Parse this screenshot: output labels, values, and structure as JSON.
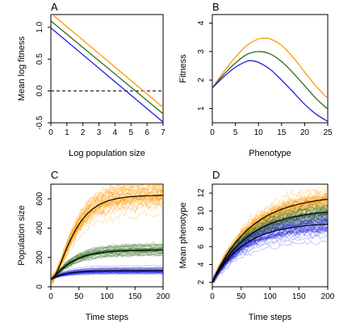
{
  "chart_data": [
    {
      "panel": "A",
      "type": "line",
      "xlabel": "Log population size",
      "ylabel": "Mean log fitness",
      "xlim": [
        0,
        7
      ],
      "ylim": [
        -0.5,
        1.2
      ],
      "xticks": [
        0,
        1,
        2,
        3,
        4,
        5,
        6,
        7
      ],
      "yticks": [
        -0.5,
        0.0,
        0.5,
        1.0
      ],
      "ytick_labels": [
        "-0.5",
        "0.0",
        "0.5",
        "1.0"
      ],
      "reference_line": {
        "y": 0,
        "style": "dashed",
        "color": "#000000"
      },
      "series": [
        {
          "color": "#FF9900",
          "x": [
            0,
            7.1
          ],
          "y": [
            1.22,
            -0.28
          ]
        },
        {
          "color": "#2E6B1F",
          "x": [
            0,
            7.1
          ],
          "y": [
            1.1,
            -0.38
          ]
        },
        {
          "color": "#1F1FE0",
          "x": [
            0,
            7.1
          ],
          "y": [
            0.99,
            -0.51
          ]
        }
      ]
    },
    {
      "panel": "B",
      "type": "line",
      "xlabel": "Phenotype",
      "ylabel": "Fitness",
      "xlim": [
        0,
        25
      ],
      "ylim": [
        0.5,
        4.3
      ],
      "xticks": [
        0,
        5,
        10,
        15,
        20,
        25
      ],
      "yticks": [
        1,
        2,
        3,
        4
      ],
      "series": [
        {
          "color": "#FF9900",
          "peak_x": 11.5,
          "peak_y": 3.47,
          "x": [
            0,
            2.5,
            5,
            7.5,
            10,
            11.5,
            12.5,
            15,
            17.5,
            20,
            22.5,
            25
          ],
          "y": [
            1.72,
            2.3,
            2.8,
            3.22,
            3.44,
            3.47,
            3.45,
            3.22,
            2.8,
            2.28,
            1.78,
            1.35
          ]
        },
        {
          "color": "#2E6B1F",
          "peak_x": 10,
          "peak_y": 3.0,
          "x": [
            0,
            2.5,
            5,
            7.5,
            10,
            12.5,
            15,
            17.5,
            20,
            22.5,
            25
          ],
          "y": [
            1.72,
            2.2,
            2.6,
            2.9,
            3.0,
            2.92,
            2.65,
            2.25,
            1.8,
            1.35,
            0.98
          ]
        },
        {
          "color": "#1F1FE0",
          "peak_x": 8.5,
          "peak_y": 2.68,
          "x": [
            0,
            2.5,
            5,
            7.5,
            8.5,
            10,
            12.5,
            15,
            17.5,
            20,
            22.5,
            25
          ],
          "y": [
            1.72,
            2.12,
            2.45,
            2.66,
            2.68,
            2.62,
            2.38,
            2.0,
            1.58,
            1.15,
            0.8,
            0.55
          ]
        }
      ]
    },
    {
      "panel": "C",
      "type": "line",
      "xlabel": "Time steps",
      "ylabel": "Population size",
      "xlim": [
        0,
        200
      ],
      "ylim": [
        0,
        700
      ],
      "xticks": [
        0,
        50,
        100,
        150,
        200
      ],
      "yticks": [
        0,
        200,
        400,
        600
      ],
      "series": [
        {
          "color": "#FF9900",
          "mean_color": "#000000",
          "start": 50,
          "end": 625,
          "rate": 0.033,
          "shape": 2,
          "spread": 0.08
        },
        {
          "color": "#2E6B1F",
          "mean_color": "#000000",
          "start": 50,
          "end": 250,
          "rate": 0.03,
          "shape": 1.3,
          "spread": 0.12
        },
        {
          "color": "#1F1FE0",
          "mean_color": "#000000",
          "start": 50,
          "end": 110,
          "rate": 0.04,
          "shape": 1,
          "spread": 0.2
        }
      ]
    },
    {
      "panel": "D",
      "type": "line",
      "xlabel": "Time steps",
      "ylabel": "Mean phenotype",
      "xlim": [
        0,
        200
      ],
      "ylim": [
        1.5,
        13
      ],
      "xticks": [
        0,
        50,
        100,
        150,
        200
      ],
      "yticks": [
        2,
        4,
        6,
        8,
        10,
        12
      ],
      "series": [
        {
          "color": "#FF9900",
          "mean_color": "#000000",
          "start": 2,
          "end": 11.8,
          "rate": 0.015,
          "shape": 1,
          "spread": 0.08
        },
        {
          "color": "#2E6B1F",
          "mean_color": "#000000",
          "start": 2,
          "end": 10.2,
          "rate": 0.016,
          "shape": 1,
          "spread": 0.08
        },
        {
          "color": "#1F1FE0",
          "mean_color": "#000000",
          "start": 2,
          "end": 8.7,
          "rate": 0.018,
          "shape": 1,
          "spread": 0.09
        }
      ]
    }
  ]
}
